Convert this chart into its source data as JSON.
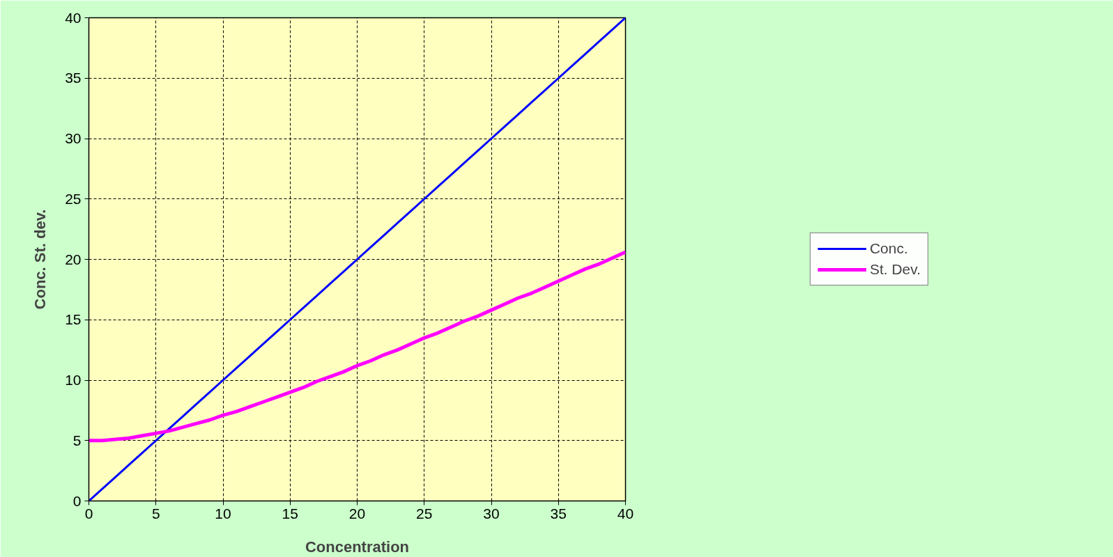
{
  "chart_data": {
    "type": "line",
    "xlabel": "Concentration",
    "ylabel": "Conc. St. dev.",
    "x": [
      0,
      1,
      2,
      3,
      4,
      5,
      6,
      7,
      8,
      9,
      10,
      11,
      12,
      13,
      14,
      15,
      16,
      17,
      18,
      19,
      20,
      21,
      22,
      23,
      24,
      25,
      26,
      27,
      28,
      29,
      30,
      31,
      32,
      33,
      34,
      35,
      36,
      37,
      38,
      39,
      40
    ],
    "series": [
      {
        "name": "Conc.",
        "color": "#0000ff",
        "values": [
          0,
          1,
          2,
          3,
          4,
          5,
          6,
          7,
          8,
          9,
          10,
          11,
          12,
          13,
          14,
          15,
          16,
          17,
          18,
          19,
          20,
          21,
          22,
          23,
          24,
          25,
          26,
          27,
          28,
          29,
          30,
          31,
          32,
          33,
          34,
          35,
          36,
          37,
          38,
          39,
          40
        ]
      },
      {
        "name": "St. Dev.",
        "color": "#ff00ff",
        "values": [
          5.0,
          5.0,
          5.1,
          5.2,
          5.4,
          5.6,
          5.8,
          6.1,
          6.4,
          6.7,
          7.1,
          7.4,
          7.8,
          8.2,
          8.6,
          9.0,
          9.4,
          9.9,
          10.3,
          10.7,
          11.2,
          11.6,
          12.1,
          12.5,
          13.0,
          13.5,
          13.9,
          14.4,
          14.9,
          15.3,
          15.8,
          16.3,
          16.8,
          17.2,
          17.7,
          18.2,
          18.7,
          19.2,
          19.6,
          20.1,
          20.6
        ]
      }
    ],
    "xlim": [
      0,
      40
    ],
    "ylim": [
      0,
      40
    ],
    "xticks": [
      0,
      5,
      10,
      15,
      20,
      25,
      30,
      35,
      40
    ],
    "yticks": [
      0,
      5,
      10,
      15,
      20,
      25,
      30,
      35,
      40
    ],
    "grid": true,
    "legend": "right",
    "marker": "none",
    "line_style": "solid"
  }
}
